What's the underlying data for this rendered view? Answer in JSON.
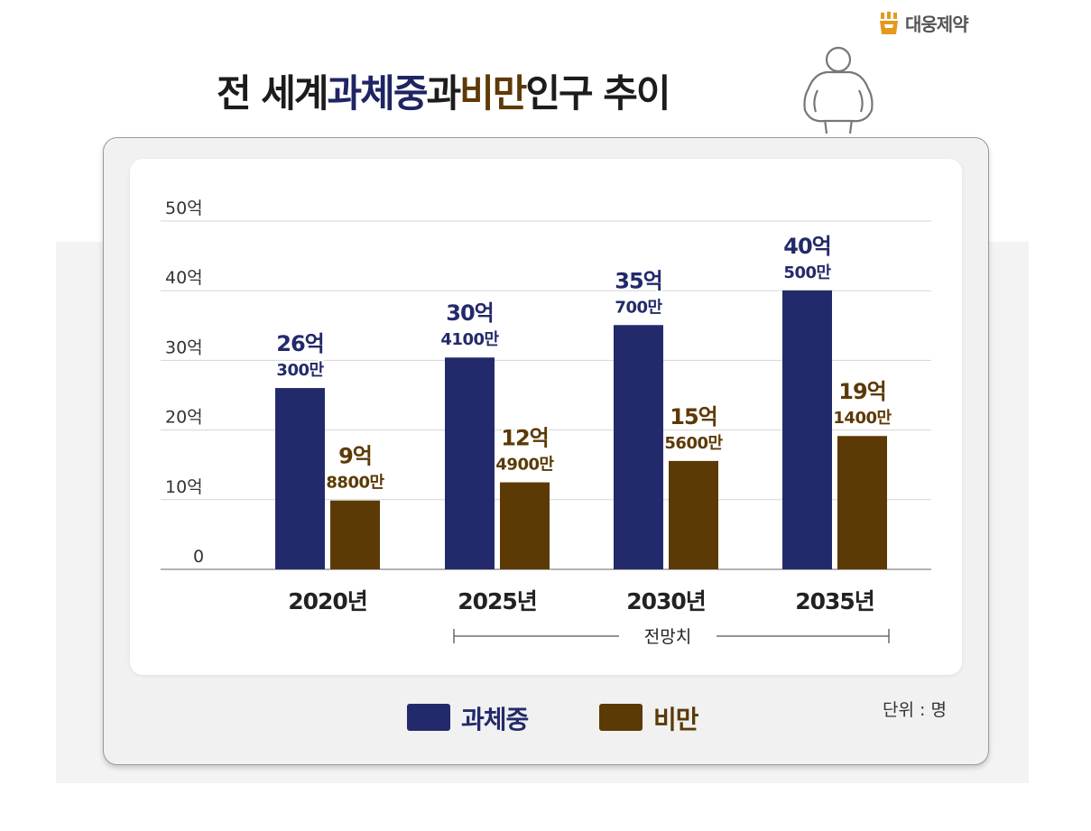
{
  "brand": {
    "name": "대웅제약",
    "color": "#e39a1c"
  },
  "title": {
    "part1": "전 세계 ",
    "part2": "과체중",
    "part3": "과 ",
    "part4": "비만",
    "part5": " 인구 추이"
  },
  "figure_icon": "obese-person-icon",
  "legend": {
    "overweight": "과체중",
    "obese": "비만"
  },
  "unit_label": "단위 : 명",
  "forecast_label": "전망치",
  "colors": {
    "overweight": "#232a6b",
    "obese": "#5c3a05",
    "overweight_label": "#232a6b",
    "obese_label": "#5c3a05",
    "grid": "#d5d5d5"
  },
  "chart_data": {
    "type": "bar",
    "title": "전 세계 과체중과 비만 인구 추이",
    "xlabel": "",
    "ylabel": "",
    "unit": "단위 : 명",
    "categories": [
      "2020년",
      "2025년",
      "2030년",
      "2035년"
    ],
    "yticks": [
      "0",
      "10억",
      "20억",
      "30억",
      "40억",
      "50억"
    ],
    "ylim": [
      0,
      50
    ],
    "series": [
      {
        "name": "과체중",
        "values": [
          26.03,
          30.41,
          35.07,
          40.05
        ],
        "labels": [
          [
            "26억",
            "300만"
          ],
          [
            "30억",
            "4100만"
          ],
          [
            "35억",
            "700만"
          ],
          [
            "40억",
            "500만"
          ]
        ]
      },
      {
        "name": "비만",
        "values": [
          9.88,
          12.49,
          15.56,
          19.14
        ],
        "labels": [
          [
            "9억",
            "8800만"
          ],
          [
            "12억",
            "4900만"
          ],
          [
            "15억",
            "5600만"
          ],
          [
            "19억",
            "1400만"
          ]
        ]
      }
    ],
    "annotation": {
      "text": "전망치",
      "span": [
        "2025년",
        "2035년"
      ]
    },
    "grid": true,
    "legend_position": "bottom-center"
  }
}
